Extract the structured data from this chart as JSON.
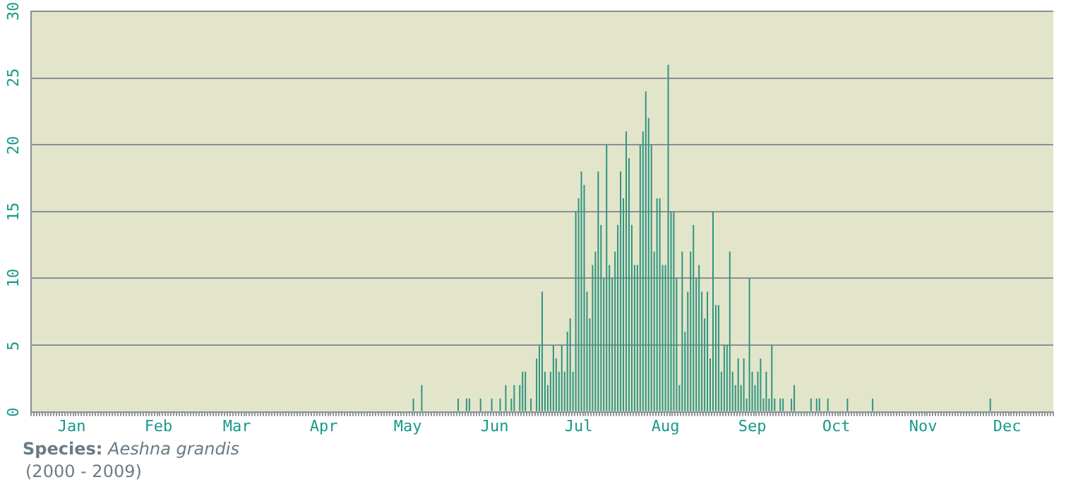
{
  "chart_data": {
    "type": "bar",
    "title": "Species: Aeshna grandis",
    "subtitle": "(2000 - 2009)",
    "categories": [
      null,
      null,
      null,
      null,
      null,
      null,
      null,
      null,
      null,
      null,
      null,
      null,
      null,
      null,
      "Jan",
      null,
      null,
      null,
      null,
      null,
      null,
      null,
      null,
      null,
      null,
      null,
      null,
      null,
      null,
      null,
      null,
      null,
      null,
      null,
      null,
      null,
      null,
      null,
      null,
      null,
      null,
      null,
      null,
      null,
      null,
      "Feb",
      null,
      null,
      null,
      null,
      null,
      null,
      null,
      null,
      null,
      null,
      null,
      null,
      null,
      null,
      null,
      null,
      null,
      null,
      null,
      null,
      null,
      null,
      null,
      null,
      null,
      null,
      null,
      "Mar",
      null,
      null,
      null,
      null,
      null,
      null,
      null,
      null,
      null,
      null,
      null,
      null,
      null,
      null,
      null,
      null,
      null,
      null,
      null,
      null,
      null,
      null,
      null,
      null,
      null,
      null,
      null,
      null,
      null,
      null,
      "Apr",
      null,
      null,
      null,
      null,
      null,
      null,
      null,
      null,
      null,
      null,
      null,
      null,
      null,
      null,
      null,
      null,
      null,
      null,
      null,
      null,
      null,
      null,
      null,
      null,
      null,
      null,
      null,
      null,
      null,
      "May",
      null,
      null,
      null,
      null,
      null,
      null,
      null,
      null,
      null,
      null,
      null,
      null,
      null,
      null,
      null,
      null,
      null,
      null,
      null,
      null,
      null,
      null,
      null,
      null,
      null,
      null,
      null,
      null,
      null,
      null,
      "Jun",
      null,
      null,
      null,
      null,
      null,
      null,
      null,
      null,
      null,
      null,
      null,
      null,
      null,
      null,
      null,
      null,
      null,
      null,
      null,
      null,
      null,
      null,
      null,
      null,
      null,
      null,
      null,
      null,
      null,
      "Jul",
      null,
      null,
      null,
      null,
      null,
      null,
      null,
      null,
      null,
      null,
      null,
      null,
      null,
      null,
      null,
      null,
      null,
      null,
      null,
      null,
      null,
      null,
      null,
      null,
      null,
      null,
      null,
      null,
      null,
      null,
      "Aug",
      null,
      null,
      null,
      null,
      null,
      null,
      null,
      null,
      null,
      null,
      null,
      null,
      null,
      null,
      null,
      null,
      null,
      null,
      null,
      null,
      null,
      null,
      null,
      null,
      null,
      null,
      null,
      null,
      null,
      null,
      "Sep",
      null,
      null,
      null,
      null,
      null,
      null,
      null,
      null,
      null,
      null,
      null,
      null,
      null,
      null,
      null,
      null,
      null,
      null,
      null,
      null,
      null,
      null,
      null,
      null,
      null,
      null,
      null,
      null,
      null,
      "Oct",
      null,
      null,
      null,
      null,
      null,
      null,
      null,
      null,
      null,
      null,
      null,
      null,
      null,
      null,
      null,
      null,
      null,
      null,
      null,
      null,
      null,
      null,
      null,
      null,
      null,
      null,
      null,
      null,
      null,
      null,
      "Nov",
      null,
      null,
      null,
      null,
      null,
      null,
      null,
      null,
      null,
      null,
      null,
      null,
      null,
      null,
      null,
      null,
      null,
      null,
      null,
      null,
      null,
      null,
      null,
      null,
      null,
      null,
      null,
      null,
      null,
      "Dec",
      null,
      null,
      null,
      null,
      null,
      null,
      null,
      null,
      null,
      null,
      null,
      null,
      null,
      null,
      null,
      null
    ],
    "values": [
      0,
      0,
      0,
      0,
      0,
      0,
      0,
      0,
      0,
      0,
      0,
      0,
      0,
      0,
      0,
      0,
      0,
      0,
      0,
      0,
      0,
      0,
      0,
      0,
      0,
      0,
      0,
      0,
      0,
      0,
      0,
      0,
      0,
      0,
      0,
      0,
      0,
      0,
      0,
      0,
      0,
      0,
      0,
      0,
      0,
      0,
      0,
      0,
      0,
      0,
      0,
      0,
      0,
      0,
      0,
      0,
      0,
      0,
      0,
      0,
      0,
      0,
      0,
      0,
      0,
      0,
      0,
      0,
      0,
      0,
      0,
      0,
      0,
      0,
      0,
      0,
      0,
      0,
      0,
      0,
      0,
      0,
      0,
      0,
      0,
      0,
      0,
      0,
      0,
      0,
      0,
      0,
      0,
      0,
      0,
      0,
      0,
      0,
      0,
      0,
      0,
      0,
      0,
      0,
      0,
      0,
      0,
      0,
      0,
      0,
      0,
      0,
      0,
      0,
      0,
      0,
      0,
      0,
      0,
      0,
      0,
      0,
      0,
      0,
      0,
      0,
      0,
      0,
      0,
      0,
      0,
      0,
      0,
      0,
      0,
      0,
      1,
      0,
      0,
      2,
      0,
      0,
      0,
      0,
      0,
      0,
      0,
      0,
      0,
      0,
      0,
      0,
      1,
      0,
      0,
      1,
      1,
      0,
      0,
      0,
      1,
      0,
      0,
      0,
      1,
      0,
      0,
      1,
      0,
      2,
      0,
      1,
      2,
      0,
      2,
      3,
      3,
      0,
      1,
      0,
      4,
      5,
      9,
      3,
      2,
      3,
      5,
      4,
      3,
      5,
      3,
      6,
      7,
      3,
      15,
      16,
      18,
      17,
      9,
      7,
      11,
      12,
      18,
      14,
      10,
      20,
      11,
      10,
      12,
      14,
      18,
      16,
      21,
      19,
      14,
      11,
      11,
      20,
      21,
      24,
      22,
      20,
      12,
      16,
      16,
      11,
      11,
      26,
      15,
      15,
      10,
      2,
      12,
      6,
      9,
      12,
      14,
      10,
      11,
      9,
      7,
      9,
      4,
      15,
      8,
      8,
      3,
      5,
      5,
      12,
      3,
      2,
      4,
      2,
      4,
      1,
      10,
      3,
      2,
      3,
      4,
      1,
      3,
      1,
      5,
      1,
      0,
      1,
      1,
      0,
      0,
      1,
      2,
      0,
      0,
      0,
      0,
      0,
      1,
      0,
      1,
      1,
      0,
      0,
      1,
      0,
      0,
      0,
      0,
      0,
      0,
      1,
      0,
      0,
      0,
      0,
      0,
      0,
      0,
      0,
      1,
      0,
      0,
      0,
      0,
      0,
      0,
      0,
      0,
      0,
      0,
      0,
      0,
      0,
      0,
      0,
      0,
      0,
      0,
      0,
      0,
      0,
      0,
      0,
      0,
      0,
      0,
      0,
      0,
      0,
      0,
      0,
      0,
      0,
      0,
      0,
      0,
      0,
      0,
      0,
      0,
      0,
      1,
      0,
      0,
      0,
      0,
      0,
      0,
      0,
      0,
      0,
      0,
      0,
      0,
      0,
      0,
      0,
      0,
      0,
      0,
      0,
      0,
      0,
      0
    ],
    "color": "#2f9483",
    "ylim": [
      0,
      30
    ],
    "yticks": [
      0,
      5,
      10,
      15,
      20,
      25,
      30
    ],
    "grid": "y"
  }
}
